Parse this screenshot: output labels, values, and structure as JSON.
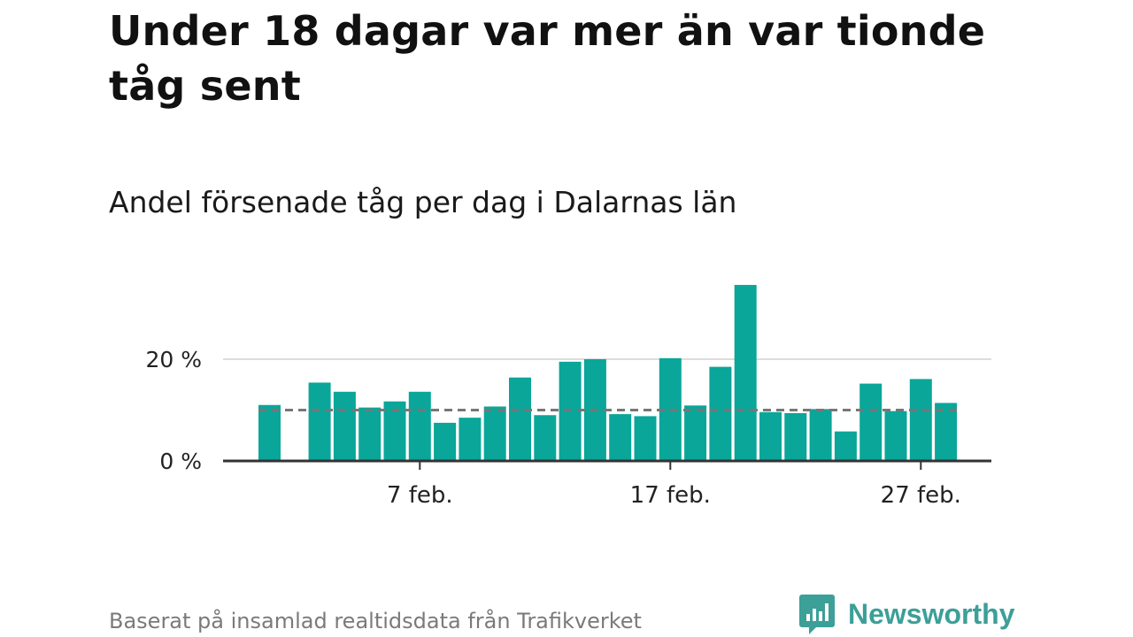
{
  "title": "Under 18 dagar var mer än var tionde tåg sent",
  "subtitle": "Andel försenade tåg per dag i Dalarnas län",
  "footer": {
    "source": "Baserat på insamlad realtidsdata från Trafikverket",
    "brand": "Newsworthy"
  },
  "colors": {
    "bar": "#0aa699",
    "reference_line": "#777777",
    "grid": "#dddddd",
    "axis": "#333333",
    "brand": "#3c9f98"
  },
  "icons": {
    "brand_logo": "chart-speech-bubble-icon"
  },
  "chart_data": {
    "type": "bar",
    "x_start": "2 feb.",
    "x": [
      "1 feb.",
      "2 feb.",
      "3 feb.",
      "4 feb.",
      "5 feb.",
      "6 feb.",
      "7 feb.",
      "8 feb.",
      "9 feb.",
      "10 feb.",
      "11 feb.",
      "12 feb.",
      "13 feb.",
      "14 feb.",
      "15 feb.",
      "16 feb.",
      "17 feb.",
      "18 feb.",
      "19 feb.",
      "20 feb.",
      "21 feb.",
      "22 feb.",
      "23 feb.",
      "24 feb.",
      "25 feb.",
      "26 feb.",
      "27 feb.",
      "28 feb."
    ],
    "values": [
      11.0,
      null,
      15.4,
      13.6,
      10.5,
      11.7,
      13.6,
      7.5,
      8.5,
      10.7,
      16.4,
      9.0,
      19.5,
      20.0,
      9.2,
      8.8,
      20.2,
      10.9,
      18.5,
      34.6,
      9.6,
      9.4,
      10.2,
      5.8,
      15.2,
      9.8,
      16.1,
      11.4
    ],
    "ylim": [
      0,
      35
    ],
    "yticks": [
      {
        "value": 0,
        "label": "0 %"
      },
      {
        "value": 20,
        "label": "20 %"
      }
    ],
    "xticks": [
      {
        "index": 6,
        "label": "7 feb."
      },
      {
        "index": 16,
        "label": "17 feb."
      },
      {
        "index": 26,
        "label": "27 feb."
      }
    ],
    "reference_line": 10,
    "grid": true,
    "legend": "none"
  }
}
